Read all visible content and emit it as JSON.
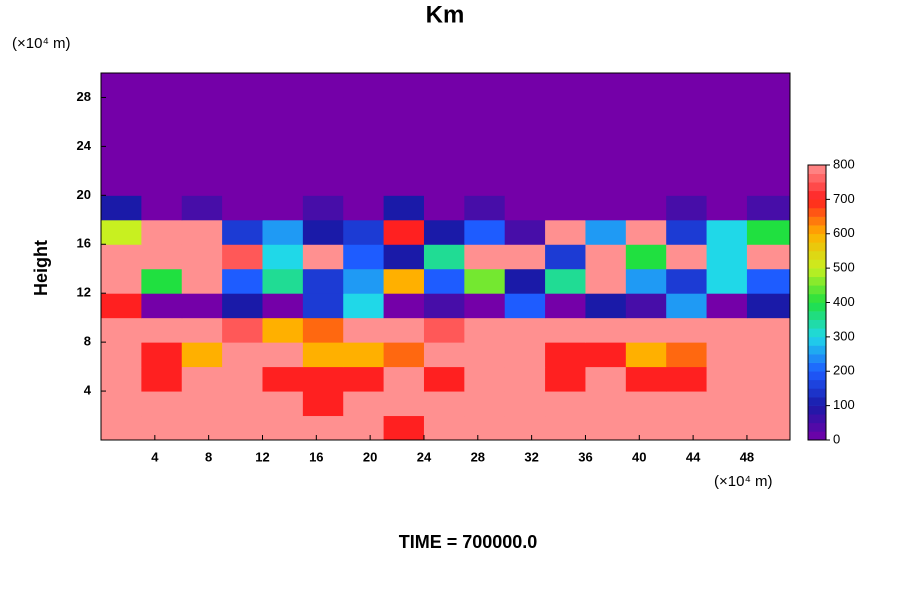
{
  "chart_data": {
    "type": "heatmap",
    "title": "Km",
    "ylabel": "Height",
    "x_unit": "(×10⁴ m)",
    "y_unit": "(×10⁴ m)",
    "footer": "TIME = 700000.0",
    "xlim": [
      0,
      51.2
    ],
    "ylim": [
      0,
      30
    ],
    "xticks": [
      4,
      8,
      12,
      16,
      20,
      24,
      28,
      32,
      36,
      40,
      44,
      48
    ],
    "yticks": [
      4,
      8,
      12,
      16,
      20,
      24,
      28
    ],
    "x": [
      1.5,
      4.5,
      7.5,
      10.5,
      13.5,
      16.5,
      19.5,
      22.5,
      25.5,
      28.5,
      31.5,
      34.5,
      37.5,
      40.5,
      43.5,
      46.5,
      49.5
    ],
    "y": [
      1,
      3,
      5,
      7,
      9,
      11,
      13,
      15,
      17,
      19,
      21,
      23,
      25,
      27,
      29
    ],
    "z": [
      [
        800,
        800,
        800,
        800,
        800,
        800,
        800,
        700,
        800,
        800,
        800,
        800,
        800,
        800,
        800,
        800,
        800
      ],
      [
        800,
        800,
        800,
        800,
        800,
        700,
        800,
        800,
        800,
        800,
        800,
        800,
        800,
        800,
        800,
        800,
        800
      ],
      [
        800,
        700,
        800,
        800,
        700,
        700,
        700,
        800,
        700,
        800,
        800,
        700,
        800,
        700,
        700,
        800,
        800
      ],
      [
        800,
        700,
        600,
        800,
        800,
        600,
        600,
        650,
        800,
        800,
        800,
        700,
        700,
        600,
        650,
        800,
        800
      ],
      [
        800,
        800,
        800,
        750,
        600,
        650,
        800,
        800,
        750,
        800,
        800,
        800,
        800,
        800,
        800,
        800,
        800
      ],
      [
        700,
        0,
        0,
        100,
        0,
        150,
        300,
        0,
        50,
        0,
        200,
        0,
        100,
        50,
        250,
        0,
        100
      ],
      [
        800,
        400,
        800,
        200,
        350,
        150,
        250,
        600,
        200,
        450,
        100,
        350,
        800,
        250,
        150,
        300,
        200
      ],
      [
        800,
        800,
        800,
        750,
        300,
        800,
        200,
        100,
        350,
        800,
        800,
        150,
        800,
        400,
        800,
        300,
        800
      ],
      [
        500,
        800,
        800,
        150,
        250,
        100,
        150,
        700,
        100,
        200,
        50,
        800,
        250,
        800,
        150,
        300,
        400
      ],
      [
        100,
        0,
        50,
        0,
        0,
        50,
        0,
        100,
        0,
        50,
        0,
        0,
        0,
        0,
        50,
        0,
        50
      ],
      [
        0,
        0,
        0,
        0,
        0,
        0,
        0,
        0,
        0,
        0,
        0,
        0,
        0,
        0,
        0,
        0,
        0
      ],
      [
        0,
        0,
        0,
        0,
        0,
        0,
        0,
        0,
        0,
        0,
        0,
        0,
        0,
        0,
        0,
        0,
        0
      ],
      [
        0,
        0,
        0,
        0,
        0,
        0,
        0,
        0,
        0,
        0,
        0,
        0,
        0,
        0,
        0,
        0,
        0
      ],
      [
        0,
        0,
        0,
        0,
        0,
        0,
        0,
        0,
        0,
        0,
        0,
        0,
        0,
        0,
        0,
        0,
        0
      ],
      [
        0,
        0,
        0,
        0,
        0,
        0,
        0,
        0,
        0,
        0,
        0,
        0,
        0,
        0,
        0,
        0,
        0
      ]
    ],
    "colorbar": {
      "lim": [
        0,
        800
      ],
      "ticks": [
        0,
        100,
        200,
        300,
        400,
        500,
        600,
        700,
        800
      ],
      "colors": [
        "#7400a8",
        "#1a1aa8",
        "#1e5cff",
        "#20d8e8",
        "#20e040",
        "#c8f020",
        "#ffb000",
        "#ff2020",
        "#ff9090"
      ]
    }
  }
}
